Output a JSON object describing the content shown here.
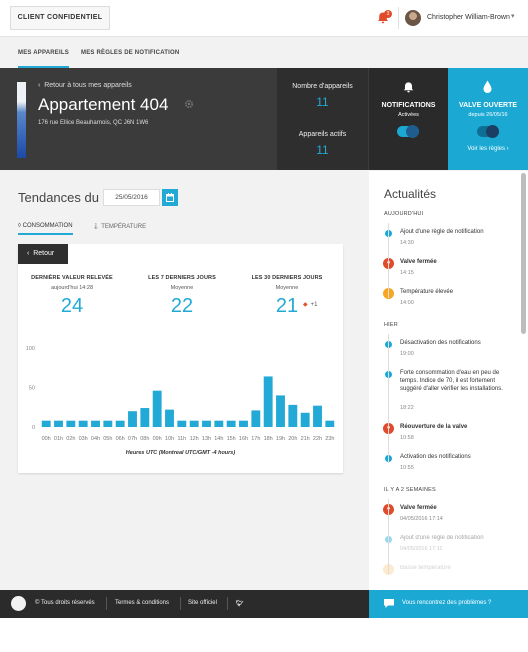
{
  "header": {
    "brand": "CLIENT CONFIDENTIEL",
    "notification_count": "3",
    "user_name": "Christopher William-Brown"
  },
  "tabs": [
    {
      "label": "MES APPAREILS",
      "active": true
    },
    {
      "label": "MES RÈGLES DE NOTIFICATION",
      "active": false
    }
  ],
  "hero": {
    "back_link": "Retour à tous mes appareils",
    "title": "Appartement 404",
    "address": "176 rue Ellice Beauharnois, QC J6N 1W6",
    "device_count_label": "Nombre d'appareils",
    "device_count": "11",
    "active_devices_label": "Appareils actifs",
    "active_devices": "11",
    "notifications_title": "NOTIFICATIONS",
    "notifications_status": "Activées",
    "notifications_on": true,
    "valve_title": "VALVE OUVERTE",
    "valve_since": "depuis 26/05/16",
    "valve_open": true,
    "rules_link": "Voir les règles ›",
    "accent_color": "#1ba9d4"
  },
  "trends": {
    "title": "Tendances du",
    "date": "25/05/2016",
    "subtabs": [
      {
        "label": "CONSOMMATION",
        "active": true
      },
      {
        "label": "TEMPÉRATURE",
        "active": false
      }
    ],
    "back_button": "Retour",
    "kpis": [
      {
        "label": "DERNIÈRE VALEUR RELEVÉE",
        "sub": "aujourd'hui 14:28",
        "value": "24"
      },
      {
        "label": "LES 7 DERNIERS JOURS",
        "sub": "Moyenne",
        "value": "22"
      },
      {
        "label": "LES 30 DERNIERS JOURS",
        "sub": "Moyenne",
        "value": "21"
      }
    ],
    "kpi_trend": "+1"
  },
  "chart_data": {
    "type": "bar",
    "categories": [
      "00h",
      "01h",
      "02h",
      "03h",
      "04h",
      "05h",
      "06h",
      "07h",
      "08h",
      "09h",
      "10h",
      "11h",
      "12h",
      "13h",
      "14h",
      "15h",
      "16h",
      "17h",
      "18h",
      "19h",
      "20h",
      "21h",
      "22h",
      "23h"
    ],
    "values": [
      8,
      8,
      8,
      8,
      8,
      8,
      8,
      20,
      24,
      46,
      22,
      8,
      8,
      8,
      8,
      8,
      8,
      21,
      64,
      40,
      28,
      18,
      27,
      8
    ],
    "ylim": [
      0,
      100
    ],
    "yticks": [
      0,
      50,
      100
    ],
    "xlabel": "Heures UTC (Montreal UTC/GMT -4 hours)",
    "grid": false,
    "bar_color": "#23a9d6"
  },
  "news": {
    "title": "Actualités",
    "sections": [
      {
        "label": "AUJOURD'HUI",
        "items": [
          {
            "text": "Ajout d'une règle de notification",
            "time": "14:30",
            "icon": "dot",
            "bold": false
          },
          {
            "text": "Valve fermée",
            "time": "14:15",
            "icon": "valve-icon",
            "bold": true
          },
          {
            "text": "Température élevée",
            "time": "14:00",
            "icon": "thermometer-icon",
            "bold": false
          }
        ]
      },
      {
        "label": "HIER",
        "items": [
          {
            "text": "Désactivation des notifications",
            "time": "19:00",
            "icon": "dot",
            "bold": false
          },
          {
            "text": "Forte consommation d'eau en peu de temps. Indice de 70, il est fortement suggéré d'aller vérifier les installations.",
            "time": "18:22",
            "icon": "dot",
            "bold": false
          },
          {
            "text": "Réouverture de la valve",
            "time": "10:58",
            "icon": "valve-icon",
            "bold": true
          },
          {
            "text": "Activation des notifications",
            "time": "10:55",
            "icon": "dot",
            "bold": false
          }
        ]
      },
      {
        "label": "IL Y A 2 SEMAINES",
        "items": [
          {
            "text": "Valve fermée",
            "time": "04/05/2016 17:14",
            "icon": "valve-icon",
            "bold": true
          },
          {
            "text": "Ajout d'une règle de notification",
            "time": "04/05/2016 17:11",
            "icon": "dot",
            "bold": false
          },
          {
            "text": "Basse température",
            "time": "",
            "icon": "thermometer-icon",
            "bold": false
          }
        ]
      }
    ]
  },
  "footer": {
    "copyright": "© Tous droits réservés",
    "terms": "Termes & conditions",
    "site": "Site officiel",
    "help": "Vous rencontrez des problèmes ?"
  }
}
